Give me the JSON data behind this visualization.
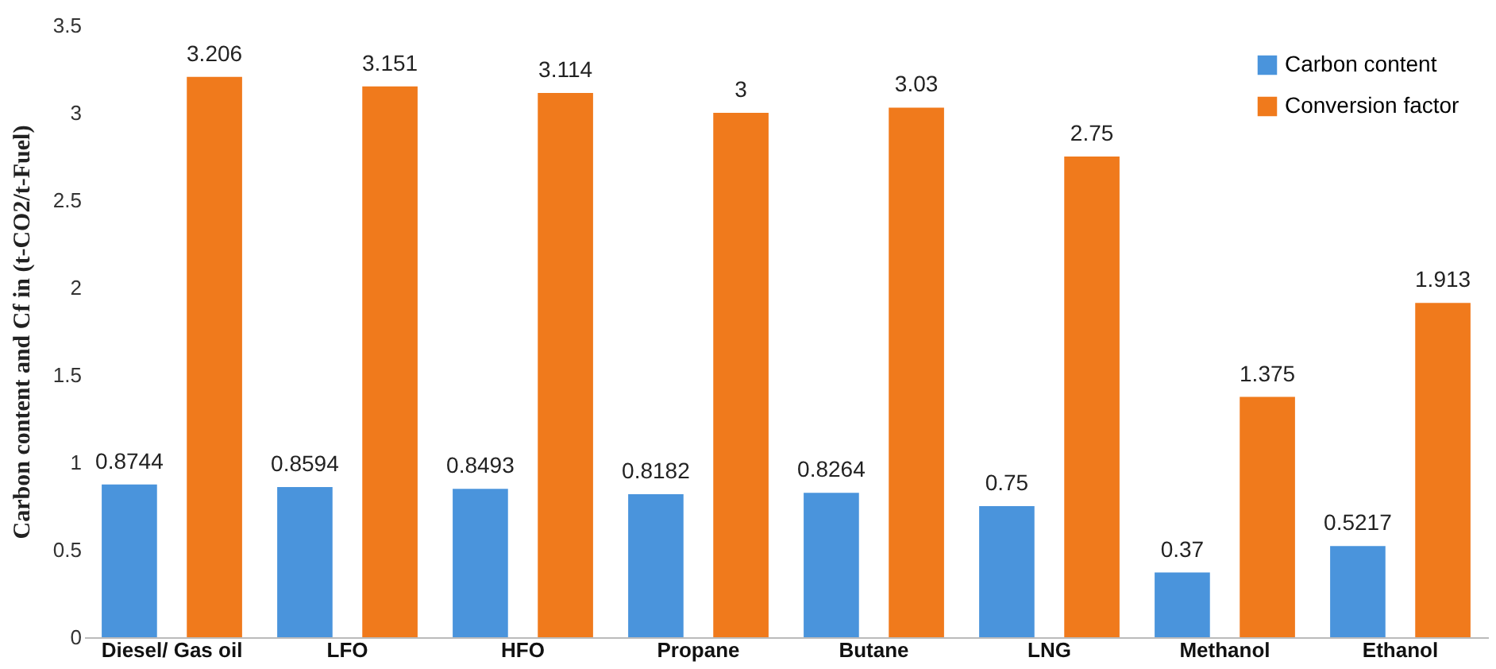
{
  "chart_data": {
    "type": "bar",
    "ylabel": "Carbon content and Cf in (t-CO2/t-Fuel)",
    "categories": [
      "Diesel/ Gas oil",
      "LFO",
      "HFO",
      "Propane",
      "Butane",
      "LNG",
      "Methanol",
      "Ethanol"
    ],
    "series": [
      {
        "name": "Carbon content",
        "color": "#4a94dc",
        "values": [
          0.8744,
          0.8594,
          0.8493,
          0.8182,
          0.8264,
          0.75,
          0.37,
          0.5217
        ]
      },
      {
        "name": "Conversion factor",
        "color": "#f07a1c",
        "values": [
          3.206,
          3.151,
          3.114,
          3,
          3.03,
          2.75,
          1.375,
          1.913
        ]
      }
    ],
    "ylim": [
      0,
      3.5
    ],
    "yticks": [
      0,
      0.5,
      1,
      1.5,
      2,
      2.5,
      3,
      3.5
    ],
    "grid": false,
    "legend": "top right",
    "data_labels": true
  }
}
